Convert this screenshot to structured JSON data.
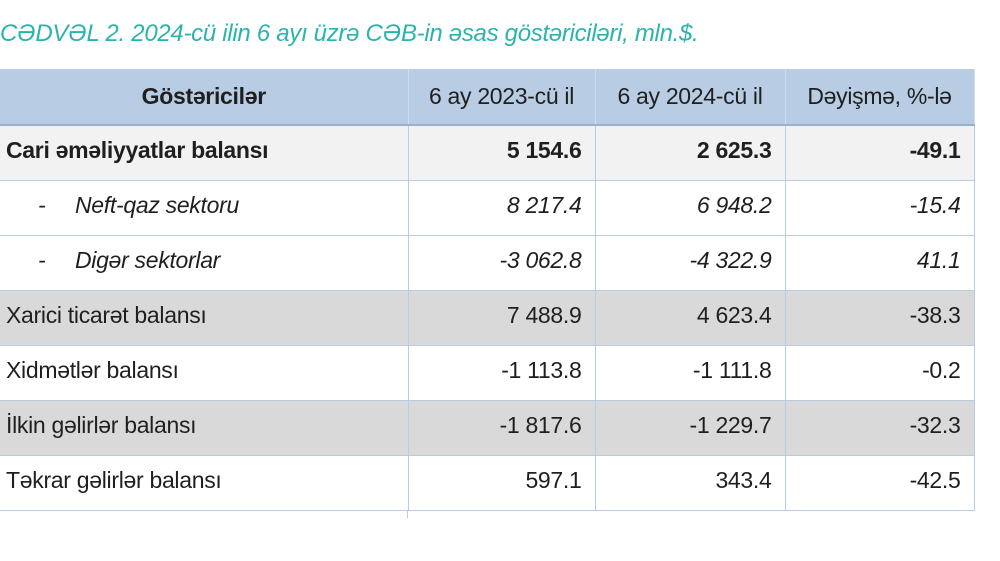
{
  "title": "CƏDVƏL 2. 2024-cü ilin 6 ayı üzrə CƏB-in əsas göstəriciləri, mln.$.",
  "table": {
    "columns": [
      "Göstəricilər",
      "6 ay 2023-cü il",
      "6 ay 2024-cü il",
      "Dəyişmə, %-lə"
    ],
    "rows": [
      {
        "label": "Cari əməliyyatlar balansı",
        "y2023": "5 154.6",
        "y2024": "2 625.3",
        "change": "-49.1"
      },
      {
        "prefix": "-",
        "label": "Neft-qaz sektoru",
        "y2023": "8 217.4",
        "y2024": "6 948.2",
        "change": "-15.4"
      },
      {
        "prefix": "-",
        "label": "Digər sektorlar",
        "y2023": "-3 062.8",
        "y2024": "-4 322.9",
        "change": "41.1"
      },
      {
        "label": "Xarici ticarət balansı",
        "y2023": "7 488.9",
        "y2024": "4 623.4",
        "change": "-38.3"
      },
      {
        "label": "Xidmətlər balansı",
        "y2023": "-1 113.8",
        "y2024": "-1 111.8",
        "change": "-0.2"
      },
      {
        "label": "İlkin gəlirlər balansı",
        "y2023": "-1 817.6",
        "y2024": "-1 229.7",
        "change": "-32.3"
      },
      {
        "label": "Təkrar gəlirlər balansı",
        "y2023": "597.1",
        "y2024": "343.4",
        "change": "-42.5"
      }
    ]
  },
  "colors": {
    "title_teal": "#2ab4ac",
    "header_bg": "#b8cce4",
    "header_bottom_border": "#96b1d3",
    "grid_line": "#b9cde2",
    "row_highlight_bg": "#f2f2f2",
    "row_gray_bg": "#d9d9d9",
    "text": "#1f1f1f"
  }
}
